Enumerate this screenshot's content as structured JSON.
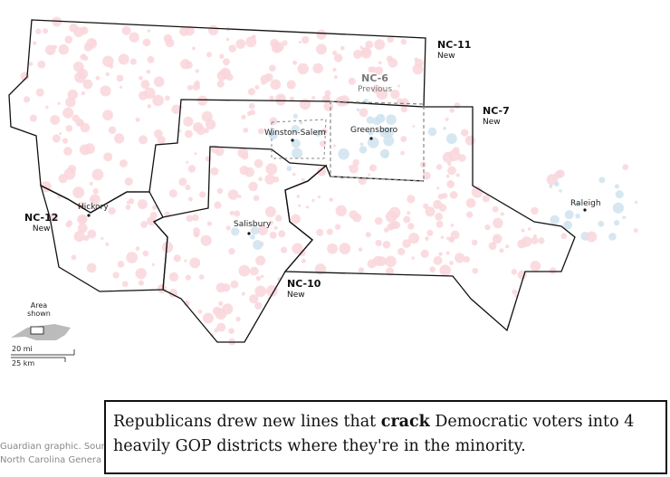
{
  "districts": [
    {
      "label": "NC-11",
      "note": "New"
    },
    {
      "label": "NC-6",
      "note": "Previous"
    },
    {
      "label": "NC-7",
      "note": "New"
    },
    {
      "label": "NC-12",
      "note": "New"
    },
    {
      "label": "NC-10",
      "note": "New"
    }
  ],
  "cities": [
    "Winston-Salem",
    "Greensboro",
    "Hickory",
    "Salisbury",
    "Raleigh"
  ],
  "inset": {
    "label": "Area shown"
  },
  "scale": [
    "20 mi",
    "25 km"
  ],
  "source": [
    "Guardian graphic. Sour",
    "North Carolina Genera"
  ],
  "caption": {
    "before": "Republicans drew new lines that ",
    "bold": "crack",
    "after": " Democratic voters into 4 heavily GOP districts where they're in the minority."
  }
}
